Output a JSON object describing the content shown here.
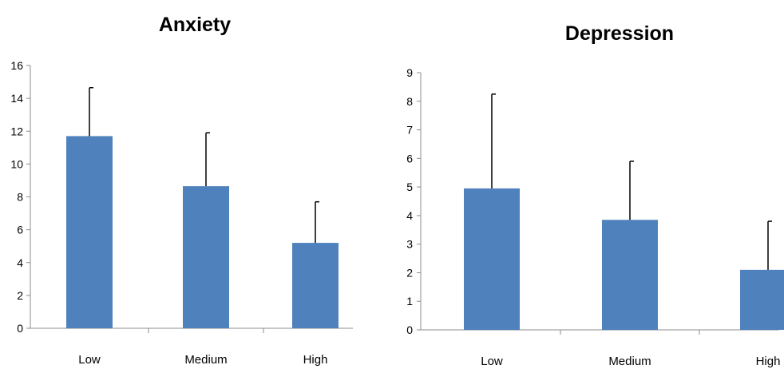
{
  "chart_data": [
    {
      "type": "bar",
      "title": "Anxiety",
      "categories": [
        "Low",
        "Medium",
        "High"
      ],
      "values": [
        11.7,
        8.65,
        5.2
      ],
      "error_upper": [
        2.95,
        3.25,
        2.5
      ],
      "ylim": [
        0,
        16
      ],
      "yticks": [
        "0",
        "2",
        "4",
        "6",
        "8",
        "10",
        "12",
        "14",
        "16"
      ],
      "ytick_values": [
        0,
        2,
        4,
        6,
        8,
        10,
        12,
        14,
        16
      ],
      "grid": false,
      "bar_color": "#4f81bd"
    },
    {
      "type": "bar",
      "title": "Depression",
      "categories": [
        "Low",
        "Medium",
        "High"
      ],
      "values": [
        4.95,
        3.85,
        2.1
      ],
      "error_upper": [
        3.3,
        2.05,
        1.7
      ],
      "ylim": [
        0,
        9
      ],
      "yticks": [
        "0",
        "1",
        "2",
        "3",
        "4",
        "5",
        "6",
        "7",
        "8",
        "9"
      ],
      "ytick_values": [
        0,
        1,
        2,
        3,
        4,
        5,
        6,
        7,
        8,
        9
      ],
      "grid": false,
      "bar_color": "#4f81bd"
    }
  ]
}
